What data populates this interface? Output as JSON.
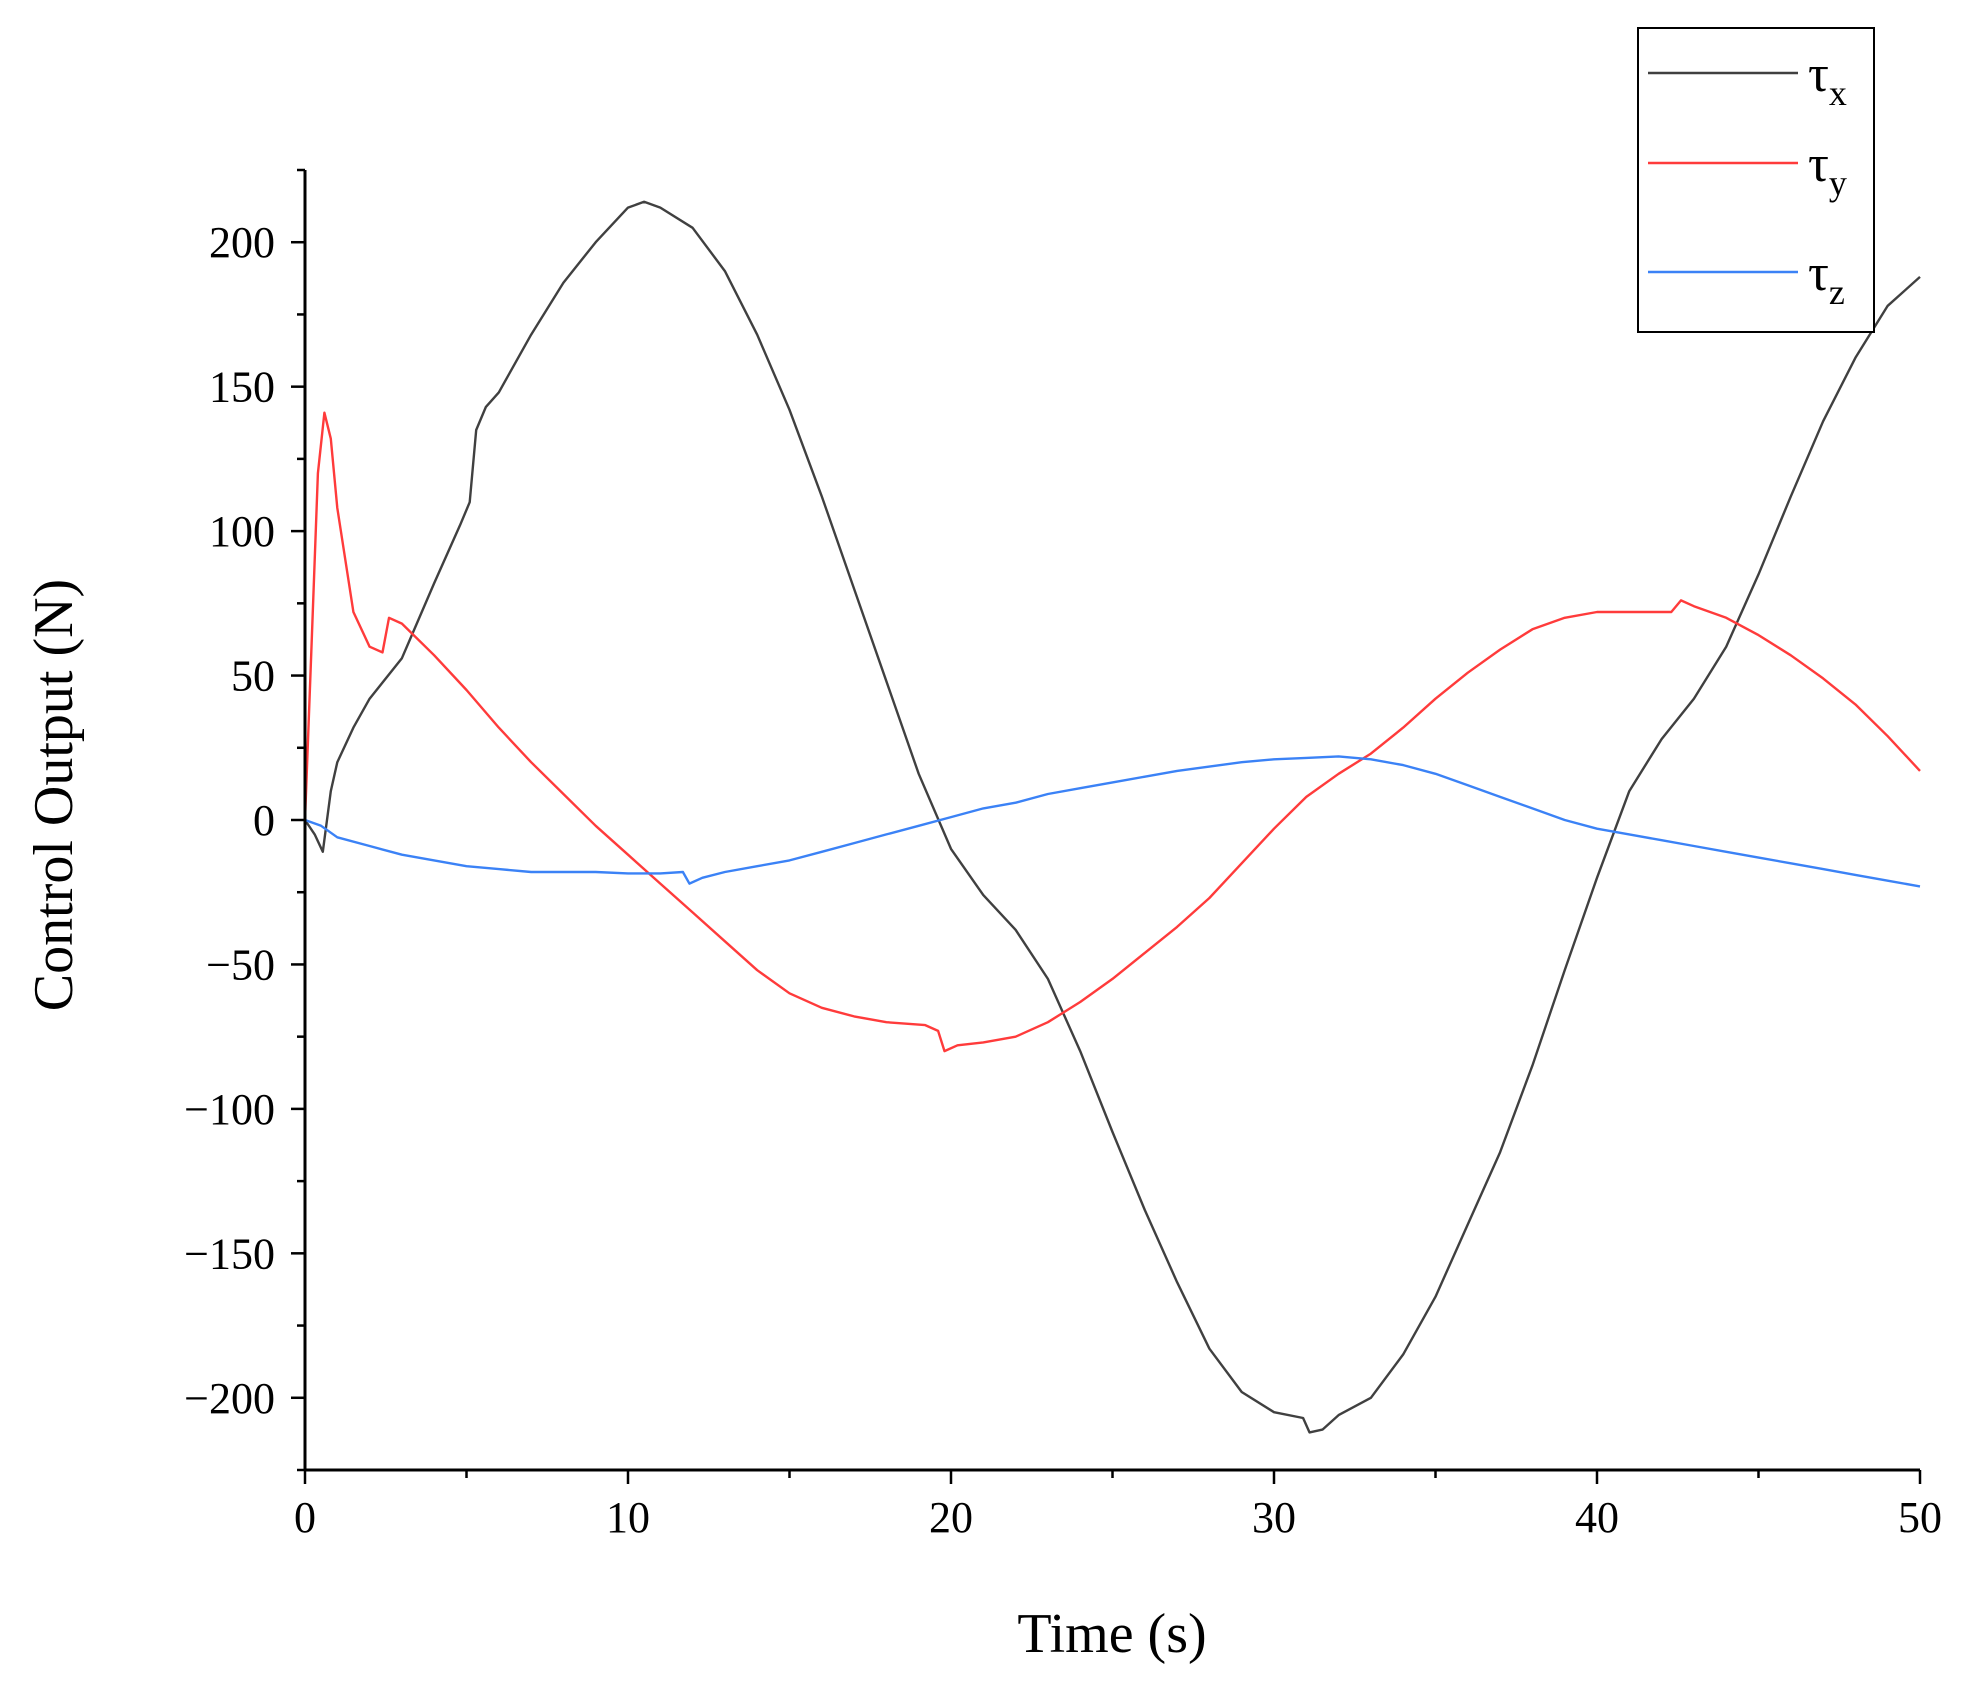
{
  "chart_data": {
    "type": "line",
    "title": "",
    "xlabel": "Time (s)",
    "ylabel": "Control Output (N)",
    "xlim": [
      0,
      50
    ],
    "ylim": [
      -225,
      225
    ],
    "xticks": [
      0,
      10,
      20,
      30,
      40,
      50
    ],
    "yticks": [
      -200,
      -150,
      -100,
      -50,
      0,
      50,
      100,
      150,
      200
    ],
    "x_tick_labels": [
      "0",
      "10",
      "20",
      "30",
      "40",
      "50"
    ],
    "y_tick_labels": [
      "−200",
      "−150",
      "−100",
      "−50",
      "0",
      "50",
      "100",
      "150",
      "200"
    ],
    "grid": false,
    "legend_position": "top-right",
    "series": [
      {
        "name": "τx",
        "symbol": "τ",
        "subscript": "x",
        "color": "#404040",
        "points": [
          [
            0,
            0
          ],
          [
            0.3,
            -5
          ],
          [
            0.55,
            -11
          ],
          [
            0.8,
            10
          ],
          [
            1,
            20
          ],
          [
            1.5,
            32
          ],
          [
            2,
            42
          ],
          [
            3,
            56
          ],
          [
            4,
            82
          ],
          [
            4.8,
            102
          ],
          [
            5.1,
            110
          ],
          [
            5.3,
            135
          ],
          [
            5.6,
            143
          ],
          [
            6,
            148
          ],
          [
            7,
            168
          ],
          [
            8,
            186
          ],
          [
            9,
            200
          ],
          [
            10,
            212
          ],
          [
            10.5,
            214
          ],
          [
            11,
            212
          ],
          [
            12,
            205
          ],
          [
            13,
            190
          ],
          [
            14,
            168
          ],
          [
            15,
            142
          ],
          [
            16,
            112
          ],
          [
            17,
            80
          ],
          [
            18,
            48
          ],
          [
            19,
            16
          ],
          [
            20,
            -10
          ],
          [
            21,
            -26
          ],
          [
            22,
            -38
          ],
          [
            23,
            -55
          ],
          [
            24,
            -80
          ],
          [
            25,
            -108
          ],
          [
            26,
            -135
          ],
          [
            27,
            -160
          ],
          [
            28,
            -183
          ],
          [
            29,
            -198
          ],
          [
            30,
            -205
          ],
          [
            30.9,
            -207
          ],
          [
            31.1,
            -212
          ],
          [
            31.5,
            -211
          ],
          [
            32,
            -206
          ],
          [
            33,
            -200
          ],
          [
            34,
            -185
          ],
          [
            35,
            -165
          ],
          [
            36,
            -140
          ],
          [
            37,
            -115
          ],
          [
            38,
            -85
          ],
          [
            39,
            -52
          ],
          [
            40,
            -20
          ],
          [
            41,
            10
          ],
          [
            42,
            28
          ],
          [
            43,
            42
          ],
          [
            44,
            60
          ],
          [
            45,
            85
          ],
          [
            46,
            112
          ],
          [
            47,
            138
          ],
          [
            48,
            160
          ],
          [
            49,
            178
          ],
          [
            50,
            188
          ]
        ]
      },
      {
        "name": "τy",
        "symbol": "τ",
        "subscript": "y",
        "color": "#ff3b3b",
        "points": [
          [
            0,
            0
          ],
          [
            0.2,
            60
          ],
          [
            0.4,
            120
          ],
          [
            0.6,
            141
          ],
          [
            0.8,
            132
          ],
          [
            1,
            108
          ],
          [
            1.5,
            72
          ],
          [
            2,
            60
          ],
          [
            2.4,
            58
          ],
          [
            2.6,
            70
          ],
          [
            3,
            68
          ],
          [
            4,
            57
          ],
          [
            5,
            45
          ],
          [
            6,
            32
          ],
          [
            7,
            20
          ],
          [
            8,
            9
          ],
          [
            9,
            -2
          ],
          [
            10,
            -12
          ],
          [
            11,
            -22
          ],
          [
            12,
            -32
          ],
          [
            13,
            -42
          ],
          [
            14,
            -52
          ],
          [
            15,
            -60
          ],
          [
            16,
            -65
          ],
          [
            17,
            -68
          ],
          [
            18,
            -70
          ],
          [
            19.2,
            -71
          ],
          [
            19.6,
            -73
          ],
          [
            19.8,
            -80
          ],
          [
            20.2,
            -78
          ],
          [
            21,
            -77
          ],
          [
            22,
            -75
          ],
          [
            23,
            -70
          ],
          [
            24,
            -63
          ],
          [
            25,
            -55
          ],
          [
            26,
            -46
          ],
          [
            27,
            -37
          ],
          [
            28,
            -27
          ],
          [
            29,
            -15
          ],
          [
            30,
            -3
          ],
          [
            31,
            8
          ],
          [
            32,
            16
          ],
          [
            33,
            23
          ],
          [
            34,
            32
          ],
          [
            35,
            42
          ],
          [
            36,
            51
          ],
          [
            37,
            59
          ],
          [
            38,
            66
          ],
          [
            39,
            70
          ],
          [
            40,
            72
          ],
          [
            41,
            72
          ],
          [
            42.3,
            72
          ],
          [
            42.6,
            76
          ],
          [
            43,
            74
          ],
          [
            44,
            70
          ],
          [
            45,
            64
          ],
          [
            46,
            57
          ],
          [
            47,
            49
          ],
          [
            48,
            40
          ],
          [
            49,
            29
          ],
          [
            50,
            17
          ]
        ]
      },
      {
        "name": "τz",
        "symbol": "τ",
        "subscript": "z",
        "color": "#3b82f6",
        "points": [
          [
            0,
            0
          ],
          [
            0.5,
            -2
          ],
          [
            1,
            -6
          ],
          [
            2,
            -9
          ],
          [
            3,
            -12
          ],
          [
            4,
            -14
          ],
          [
            5,
            -16
          ],
          [
            6,
            -17
          ],
          [
            7,
            -18
          ],
          [
            8,
            -18
          ],
          [
            9,
            -18
          ],
          [
            10,
            -18.5
          ],
          [
            11,
            -18.5
          ],
          [
            11.7,
            -18
          ],
          [
            11.9,
            -22
          ],
          [
            12.3,
            -20
          ],
          [
            13,
            -18
          ],
          [
            14,
            -16
          ],
          [
            15,
            -14
          ],
          [
            16,
            -11
          ],
          [
            17,
            -8
          ],
          [
            18,
            -5
          ],
          [
            19,
            -2
          ],
          [
            20,
            1
          ],
          [
            21,
            4
          ],
          [
            22,
            6
          ],
          [
            23,
            9
          ],
          [
            24,
            11
          ],
          [
            25,
            13
          ],
          [
            26,
            15
          ],
          [
            27,
            17
          ],
          [
            28,
            18.5
          ],
          [
            29,
            20
          ],
          [
            30,
            21
          ],
          [
            31,
            21.5
          ],
          [
            32,
            22
          ],
          [
            33,
            21
          ],
          [
            34,
            19
          ],
          [
            35,
            16
          ],
          [
            36,
            12
          ],
          [
            37,
            8
          ],
          [
            38,
            4
          ],
          [
            39,
            0
          ],
          [
            40,
            -3
          ],
          [
            41,
            -5
          ],
          [
            42,
            -7
          ],
          [
            43,
            -9
          ],
          [
            44,
            -11
          ],
          [
            45,
            -13
          ],
          [
            46,
            -15
          ],
          [
            47,
            -17
          ],
          [
            48,
            -19
          ],
          [
            49,
            -21
          ],
          [
            50,
            -23
          ]
        ]
      }
    ]
  }
}
